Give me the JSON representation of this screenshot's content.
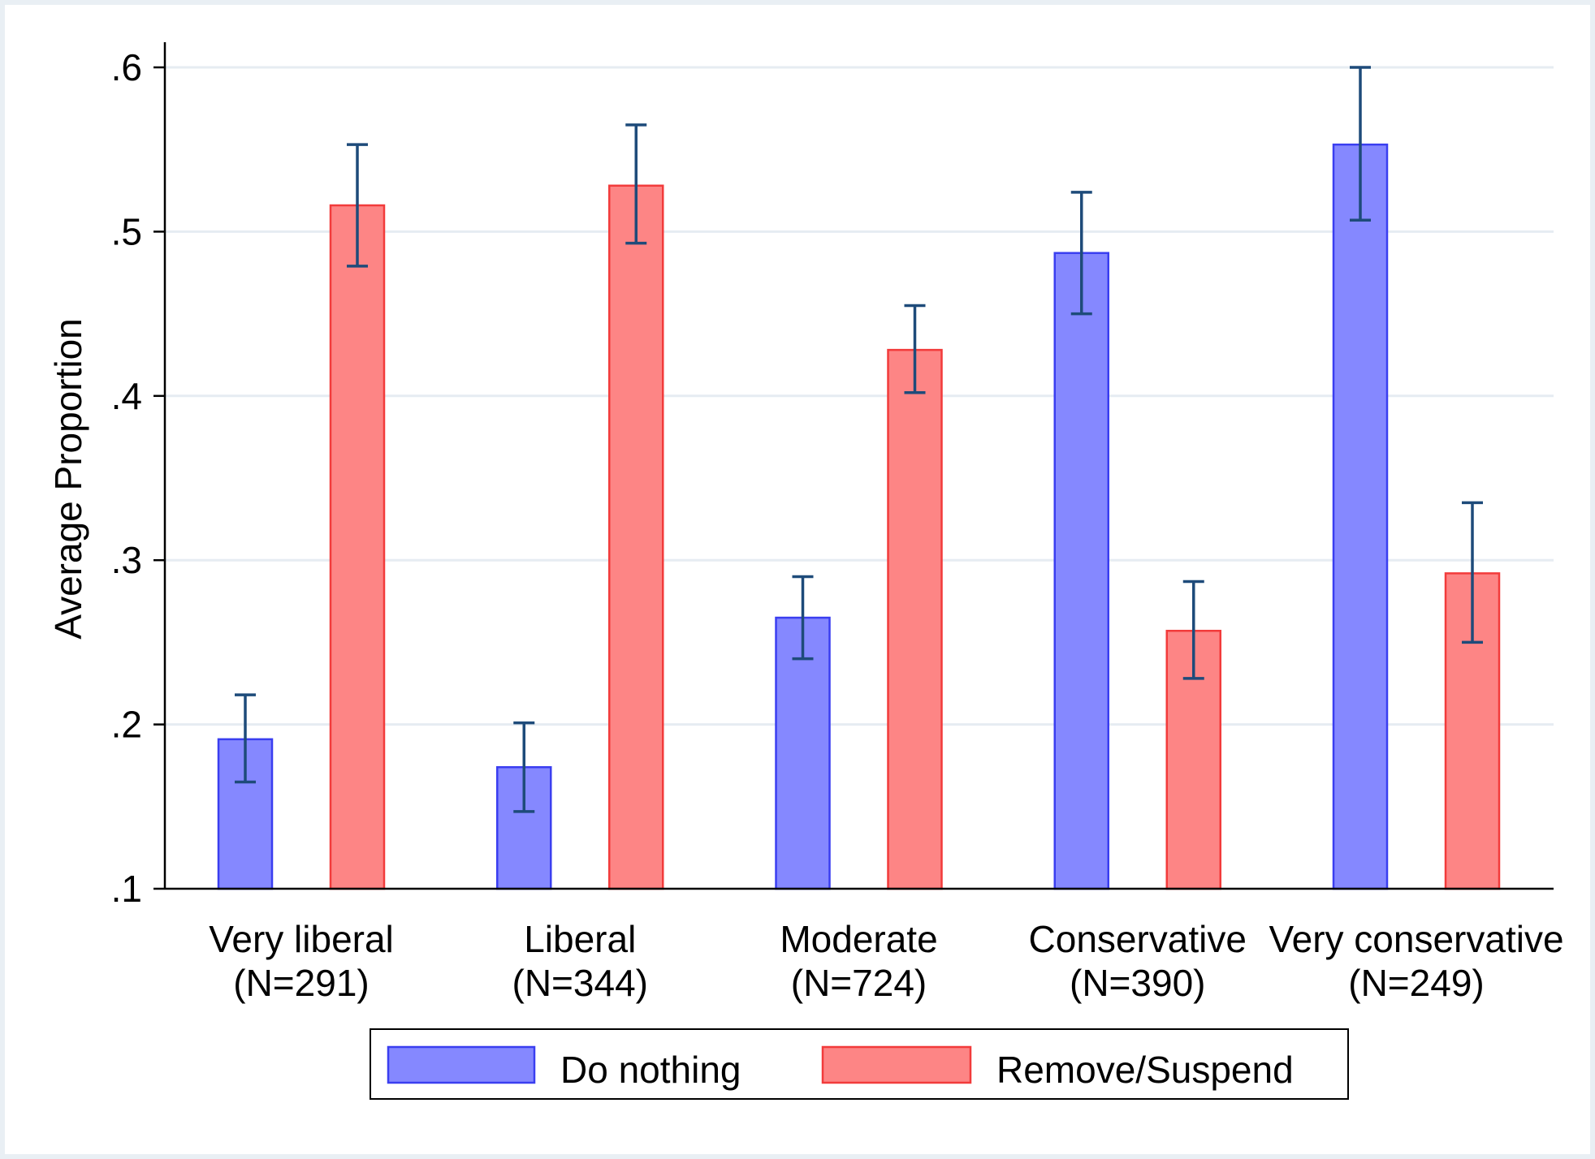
{
  "chart_data": {
    "type": "bar",
    "ylabel": "Average Proportion",
    "xlabel": "",
    "ylim": [
      0.1,
      0.6
    ],
    "yticks": [
      0.1,
      0.2,
      0.3,
      0.4,
      0.5,
      0.6
    ],
    "ytick_labels": [
      ".1",
      ".2",
      ".3",
      ".4",
      ".5",
      ".6"
    ],
    "grid": true,
    "legend_position": "bottom",
    "categories": [
      {
        "name": "Very liberal",
        "n_label": "(N=291)"
      },
      {
        "name": "Liberal",
        "n_label": "(N=344)"
      },
      {
        "name": "Moderate",
        "n_label": "(N=724)"
      },
      {
        "name": "Conservative",
        "n_label": "(N=390)"
      },
      {
        "name": "Very conservative",
        "n_label": "(N=249)"
      }
    ],
    "series": [
      {
        "name": "Do nothing",
        "color": "#8588ff",
        "edge_color": "#3a3ef0",
        "values": [
          0.191,
          0.174,
          0.265,
          0.487,
          0.553
        ],
        "ci_low": [
          0.165,
          0.147,
          0.24,
          0.45,
          0.507
        ],
        "ci_high": [
          0.218,
          0.201,
          0.29,
          0.524,
          0.6
        ]
      },
      {
        "name": "Remove/Suspend",
        "color": "#fd8585",
        "edge_color": "#f23b3b",
        "values": [
          0.516,
          0.528,
          0.428,
          0.257,
          0.292
        ],
        "ci_low": [
          0.479,
          0.493,
          0.402,
          0.228,
          0.25
        ],
        "ci_high": [
          0.553,
          0.565,
          0.455,
          0.287,
          0.335
        ]
      }
    ],
    "errorbar_color": "#1e4b7a"
  }
}
